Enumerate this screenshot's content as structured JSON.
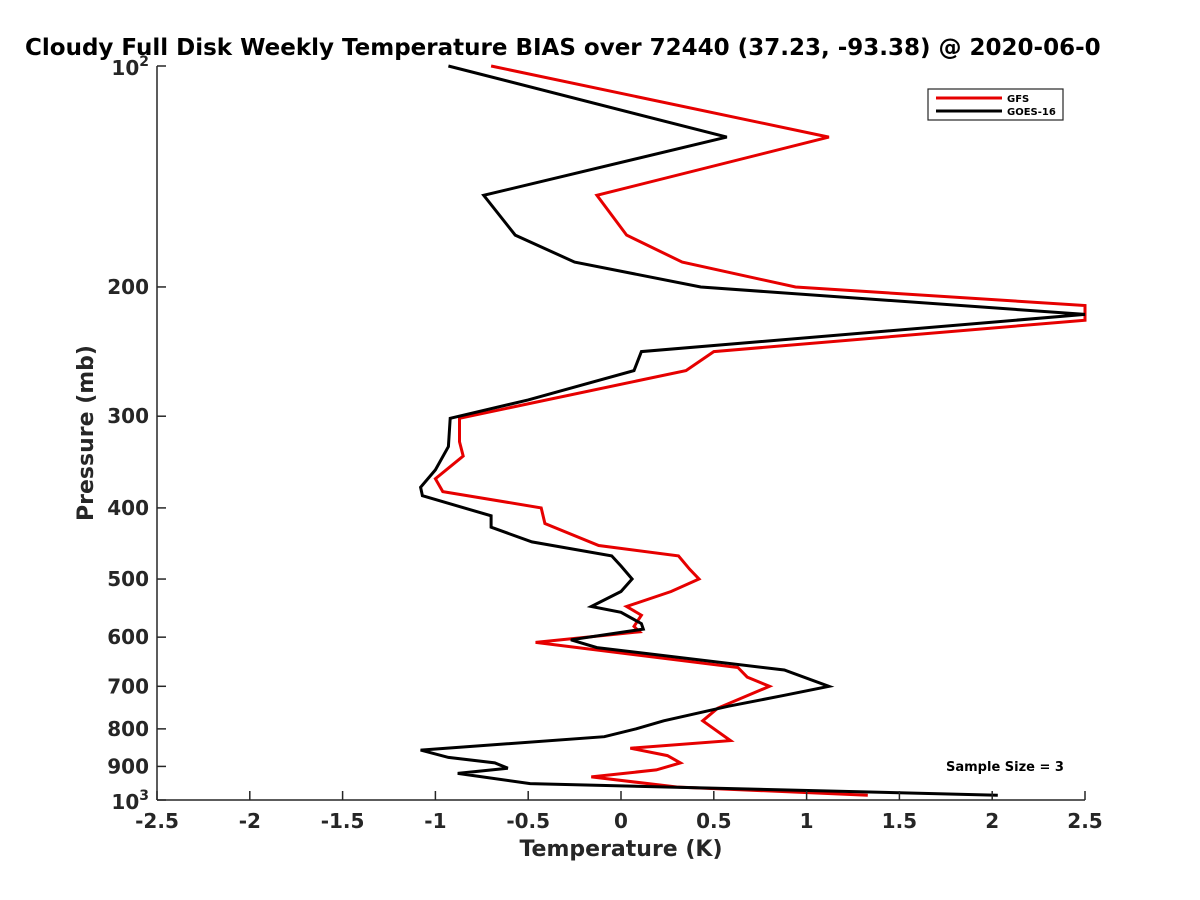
{
  "chart_data": {
    "type": "line",
    "title": "Cloudy Full Disk Weekly Temperature BIAS over 72440 (37.23, -93.38) @ 2020-06-0",
    "xlabel": "Temperature (K)",
    "ylabel": "Pressure (mb)",
    "xlim": [
      -2.5,
      2.5
    ],
    "ylim": [
      100,
      1000
    ],
    "y_scale": "log",
    "y_reversed": true,
    "grid": false,
    "legend_position": "top-right",
    "x_ticks": [
      "-2.5",
      "-2",
      "-1.5",
      "-1",
      "-0.5",
      "0",
      "0.5",
      "1",
      "1.5",
      "2",
      "2.5"
    ],
    "x_tick_values": [
      -2.5,
      -2,
      -1.5,
      -1,
      -0.5,
      0,
      0.5,
      1,
      1.5,
      2,
      2.5
    ],
    "y_ticks": [
      {
        "value": 100,
        "base": "10",
        "exp": "2"
      },
      {
        "value": 200,
        "label": "200"
      },
      {
        "value": 300,
        "label": "300"
      },
      {
        "value": 400,
        "label": "400"
      },
      {
        "value": 500,
        "label": "500"
      },
      {
        "value": 600,
        "label": "600"
      },
      {
        "value": 700,
        "label": "700"
      },
      {
        "value": 800,
        "label": "800"
      },
      {
        "value": 900,
        "label": "900"
      },
      {
        "value": 1000,
        "base": "10",
        "exp": "3"
      }
    ],
    "annotation": "Sample Size = 3",
    "series": [
      {
        "name": "GFS",
        "color": "#e60000",
        "points": [
          [
            -0.7,
            100
          ],
          [
            1.12,
            125
          ],
          [
            -0.13,
            150
          ],
          [
            0.03,
            170
          ],
          [
            0.33,
            185
          ],
          [
            0.94,
            200
          ],
          [
            2.5,
            212
          ],
          [
            2.5,
            222
          ],
          [
            0.5,
            245
          ],
          [
            0.35,
            260
          ],
          [
            -0.87,
            302
          ],
          [
            -0.87,
            325
          ],
          [
            -0.85,
            340
          ],
          [
            -1.0,
            365
          ],
          [
            -0.96,
            380
          ],
          [
            -0.43,
            400
          ],
          [
            -0.41,
            420
          ],
          [
            -0.12,
            450
          ],
          [
            0.31,
            465
          ],
          [
            0.37,
            485
          ],
          [
            0.42,
            500
          ],
          [
            0.27,
            520
          ],
          [
            0.03,
            545
          ],
          [
            0.11,
            560
          ],
          [
            0.07,
            580
          ],
          [
            0.1,
            590
          ],
          [
            -0.46,
            610
          ],
          [
            0.63,
            660
          ],
          [
            0.68,
            680
          ],
          [
            0.8,
            700
          ],
          [
            0.52,
            750
          ],
          [
            0.44,
            780
          ],
          [
            0.59,
            830
          ],
          [
            0.05,
            850
          ],
          [
            0.25,
            870
          ],
          [
            0.32,
            890
          ],
          [
            0.19,
            910
          ],
          [
            -0.16,
            930
          ],
          [
            0.3,
            960
          ],
          [
            1.33,
            985
          ]
        ]
      },
      {
        "name": "GOES-16",
        "color": "#000000",
        "points": [
          [
            -0.93,
            100
          ],
          [
            0.57,
            125
          ],
          [
            -0.74,
            150
          ],
          [
            -0.57,
            170
          ],
          [
            -0.25,
            185
          ],
          [
            0.43,
            200
          ],
          [
            2.5,
            218
          ],
          [
            0.11,
            245
          ],
          [
            0.07,
            260
          ],
          [
            -0.5,
            285
          ],
          [
            -0.92,
            302
          ],
          [
            -0.93,
            330
          ],
          [
            -1.0,
            355
          ],
          [
            -1.08,
            375
          ],
          [
            -1.07,
            385
          ],
          [
            -0.7,
            410
          ],
          [
            -0.7,
            425
          ],
          [
            -0.48,
            445
          ],
          [
            -0.05,
            465
          ],
          [
            0.0,
            480
          ],
          [
            0.06,
            500
          ],
          [
            0.0,
            520
          ],
          [
            -0.16,
            545
          ],
          [
            0.0,
            555
          ],
          [
            0.11,
            575
          ],
          [
            0.12,
            585
          ],
          [
            -0.27,
            605
          ],
          [
            -0.13,
            620
          ],
          [
            0.88,
            665
          ],
          [
            1.12,
            700
          ],
          [
            0.88,
            720
          ],
          [
            0.58,
            745
          ],
          [
            0.23,
            780
          ],
          [
            0.08,
            800
          ],
          [
            -0.09,
            820
          ],
          [
            -1.08,
            855
          ],
          [
            -0.93,
            875
          ],
          [
            -0.68,
            890
          ],
          [
            -0.61,
            905
          ],
          [
            -0.88,
            920
          ],
          [
            -0.49,
            950
          ],
          [
            2.03,
            985
          ]
        ]
      }
    ]
  }
}
